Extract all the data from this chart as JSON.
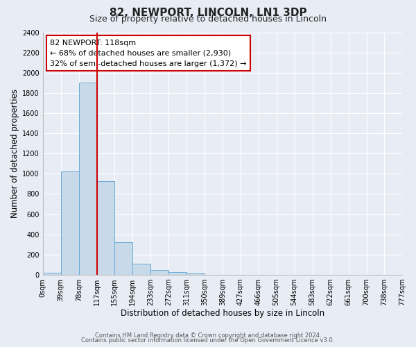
{
  "title": "82, NEWPORT, LINCOLN, LN1 3DP",
  "subtitle": "Size of property relative to detached houses in Lincoln",
  "xlabel": "Distribution of detached houses by size in Lincoln",
  "ylabel": "Number of detached properties",
  "bar_edges": [
    0,
    39,
    78,
    117,
    155,
    194,
    233,
    272,
    311,
    350,
    389,
    427,
    466,
    505,
    544,
    583,
    622,
    661,
    700,
    738,
    777
  ],
  "bar_values": [
    20,
    1020,
    1900,
    930,
    320,
    110,
    45,
    25,
    15,
    0,
    0,
    0,
    0,
    0,
    0,
    0,
    0,
    0,
    0,
    0
  ],
  "bar_color": "#c8daea",
  "bar_edge_color": "#6aaad4",
  "vline_x": 117,
  "vline_color": "#cc0000",
  "annotation_text": "82 NEWPORT: 118sqm\n← 68% of detached houses are smaller (2,930)\n32% of semi-detached houses are larger (1,372) →",
  "annotation_box_color": "#ffffff",
  "annotation_box_edge": "#cc0000",
  "ylim": [
    0,
    2400
  ],
  "yticks": [
    0,
    200,
    400,
    600,
    800,
    1000,
    1200,
    1400,
    1600,
    1800,
    2000,
    2200,
    2400
  ],
  "bg_color": "#e8edf5",
  "plot_bg_color": "#e8edf5",
  "grid_color": "#ffffff",
  "footer1": "Contains HM Land Registry data © Crown copyright and database right 2024.",
  "footer2": "Contains public sector information licensed under the Open Government Licence v3.0.",
  "title_fontsize": 11,
  "subtitle_fontsize": 9,
  "tick_label_fontsize": 7,
  "axis_label_fontsize": 8.5
}
